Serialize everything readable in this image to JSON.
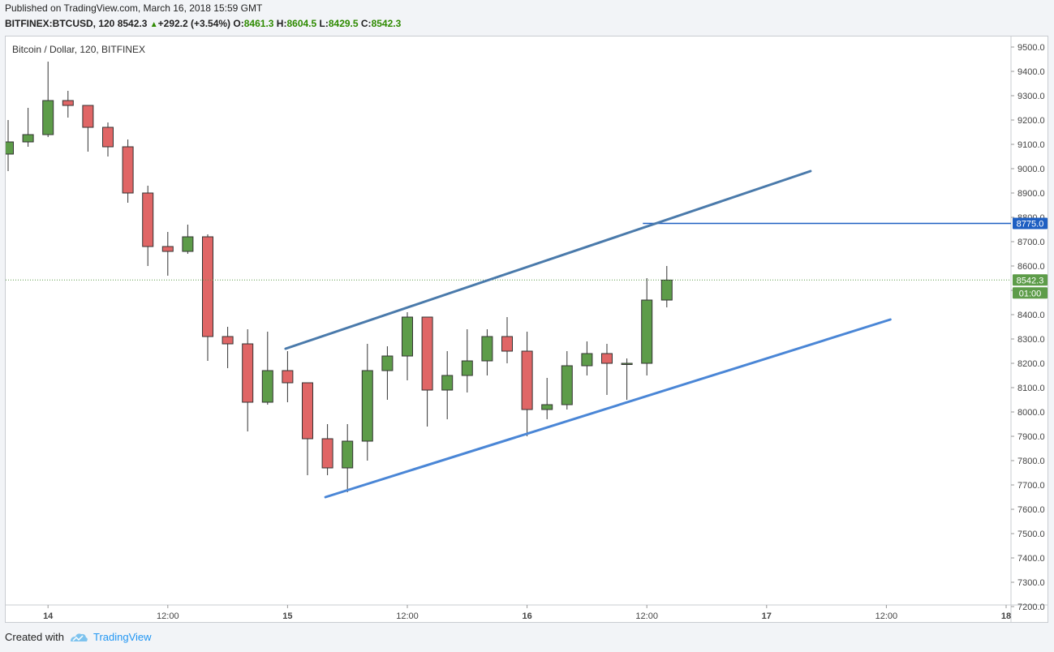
{
  "header": {
    "published": "Published on TradingView.com, March 16, 2018 15:59 GMT",
    "symbol": "BITFINEX:BTCUSD, 120",
    "last": "8542.3",
    "arrow": "▲",
    "change": "+292.2 (+3.54%)",
    "o_label": "O:",
    "o_value": "8461.3",
    "h_label": "H:",
    "h_value": "8604.5",
    "l_label": "L:",
    "l_value": "8429.5",
    "c_label": "C:",
    "c_value": "8542.3"
  },
  "footer": {
    "created_with": "Created with",
    "brand": "TradingView"
  },
  "colors": {
    "up": "#5d9c49",
    "down": "#e06666",
    "wick": "#333333",
    "channel_upper": "#4a7aab",
    "channel_lower": "#4a86d6",
    "hline": "#1e5fc2",
    "price_badge": "#5d9c49"
  },
  "chart_data": {
    "type": "candlestick",
    "title": "Bitcoin / Dollar, 120, BITFINEX",
    "ylim": [
      7200,
      9550
    ],
    "yticks": [
      "9500.0",
      "9400.0",
      "9300.0",
      "9200.0",
      "9100.0",
      "9000.0",
      "8900.0",
      "8800.0",
      "8700.0",
      "8600.0",
      "8500.0",
      "8400.0",
      "8300.0",
      "8200.0",
      "8100.0",
      "8000.0",
      "7900.0",
      "7800.0",
      "7700.0",
      "7600.0",
      "7500.0",
      "7400.0",
      "7300.0",
      "7200.0"
    ],
    "xticks": [
      {
        "label": "14",
        "bar": 2
      },
      {
        "label": "12:00",
        "bar": 8
      },
      {
        "label": "15",
        "bar": 14
      },
      {
        "label": "12:00",
        "bar": 20
      },
      {
        "label": "16",
        "bar": 26
      },
      {
        "label": "12:00",
        "bar": 32
      },
      {
        "label": "17",
        "bar": 38
      },
      {
        "label": "12:00",
        "bar": 44
      },
      {
        "label": "18",
        "bar": 50
      }
    ],
    "candles": [
      {
        "o": 9060,
        "h": 9200,
        "l": 8990,
        "c": 9110
      },
      {
        "o": 9110,
        "h": 9250,
        "l": 9090,
        "c": 9140
      },
      {
        "o": 9140,
        "h": 9440,
        "l": 9130,
        "c": 9280
      },
      {
        "o": 9280,
        "h": 9320,
        "l": 9210,
        "c": 9260
      },
      {
        "o": 9260,
        "h": 9260,
        "l": 9070,
        "c": 9170
      },
      {
        "o": 9170,
        "h": 9190,
        "l": 9050,
        "c": 9090
      },
      {
        "o": 9090,
        "h": 9120,
        "l": 8860,
        "c": 8900
      },
      {
        "o": 8900,
        "h": 8930,
        "l": 8600,
        "c": 8680
      },
      {
        "o": 8680,
        "h": 8740,
        "l": 8560,
        "c": 8660
      },
      {
        "o": 8660,
        "h": 8770,
        "l": 8650,
        "c": 8720
      },
      {
        "o": 8720,
        "h": 8730,
        "l": 8210,
        "c": 8310
      },
      {
        "o": 8310,
        "h": 8350,
        "l": 8180,
        "c": 8280
      },
      {
        "o": 8280,
        "h": 8340,
        "l": 7920,
        "c": 8040
      },
      {
        "o": 8040,
        "h": 8330,
        "l": 8030,
        "c": 8170
      },
      {
        "o": 8170,
        "h": 8250,
        "l": 8040,
        "c": 8120
      },
      {
        "o": 8120,
        "h": 8120,
        "l": 7740,
        "c": 7890
      },
      {
        "o": 7890,
        "h": 7950,
        "l": 7740,
        "c": 7770
      },
      {
        "o": 7770,
        "h": 7950,
        "l": 7670,
        "c": 7880
      },
      {
        "o": 7880,
        "h": 8280,
        "l": 7800,
        "c": 8170
      },
      {
        "o": 8170,
        "h": 8270,
        "l": 8050,
        "c": 8230
      },
      {
        "o": 8230,
        "h": 8410,
        "l": 8130,
        "c": 8390
      },
      {
        "o": 8390,
        "h": 8390,
        "l": 7940,
        "c": 8090
      },
      {
        "o": 8090,
        "h": 8250,
        "l": 7970,
        "c": 8150
      },
      {
        "o": 8150,
        "h": 8340,
        "l": 8080,
        "c": 8210
      },
      {
        "o": 8210,
        "h": 8340,
        "l": 8150,
        "c": 8310
      },
      {
        "o": 8310,
        "h": 8390,
        "l": 8200,
        "c": 8250
      },
      {
        "o": 8250,
        "h": 8330,
        "l": 7900,
        "c": 8010
      },
      {
        "o": 8010,
        "h": 8140,
        "l": 7970,
        "c": 8030
      },
      {
        "o": 8030,
        "h": 8250,
        "l": 8010,
        "c": 8190
      },
      {
        "o": 8190,
        "h": 8290,
        "l": 8150,
        "c": 8240
      },
      {
        "o": 8240,
        "h": 8280,
        "l": 8070,
        "c": 8200
      },
      {
        "o": 8200,
        "h": 8220,
        "l": 8050,
        "c": 8200
      },
      {
        "o": 8200,
        "h": 8550,
        "l": 8150,
        "c": 8460
      },
      {
        "o": 8460,
        "h": 8600,
        "l": 8430,
        "c": 8542
      }
    ],
    "trendlines": [
      {
        "name": "upper-channel-line",
        "from": {
          "bar": 13.9,
          "price": 8260
        },
        "to": {
          "bar": 40.2,
          "price": 8990
        }
      },
      {
        "name": "lower-channel-line",
        "from": {
          "bar": 15.9,
          "price": 7650
        },
        "to": {
          "bar": 44.2,
          "price": 8380
        }
      }
    ],
    "hline": {
      "price": 8775,
      "from_bar": 31.8,
      "label": "8775.0"
    },
    "last_price": {
      "price": 8542.3,
      "label": "8542.3",
      "countdown": "01:00"
    }
  }
}
